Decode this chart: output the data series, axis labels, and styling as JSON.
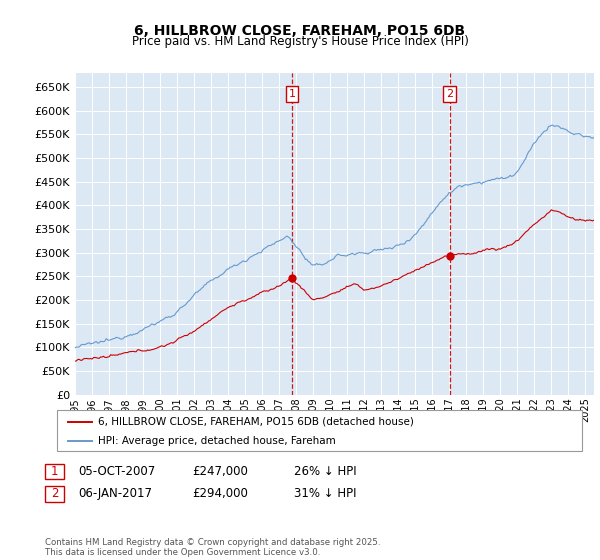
{
  "title": "6, HILLBROW CLOSE, FAREHAM, PO15 6DB",
  "subtitle": "Price paid vs. HM Land Registry's House Price Index (HPI)",
  "ylabel_ticks": [
    "£0",
    "£50K",
    "£100K",
    "£150K",
    "£200K",
    "£250K",
    "£300K",
    "£350K",
    "£400K",
    "£450K",
    "£500K",
    "£550K",
    "£600K",
    "£650K"
  ],
  "ytick_vals": [
    0,
    50000,
    100000,
    150000,
    200000,
    250000,
    300000,
    350000,
    400000,
    450000,
    500000,
    550000,
    600000,
    650000
  ],
  "ylim": [
    0,
    680000
  ],
  "xlim_start": 1995.0,
  "xlim_end": 2025.5,
  "sale1_x": 2007.76,
  "sale1_y": 247000,
  "sale2_x": 2017.02,
  "sale2_y": 294000,
  "legend_line1": "6, HILLBROW CLOSE, FAREHAM, PO15 6DB (detached house)",
  "legend_line2": "HPI: Average price, detached house, Fareham",
  "annot1_label": "1",
  "annot1_date": "05-OCT-2007",
  "annot1_price": "£247,000",
  "annot1_hpi": "26% ↓ HPI",
  "annot2_label": "2",
  "annot2_date": "06-JAN-2017",
  "annot2_price": "£294,000",
  "annot2_hpi": "31% ↓ HPI",
  "footer": "Contains HM Land Registry data © Crown copyright and database right 2025.\nThis data is licensed under the Open Government Licence v3.0.",
  "bg_color": "#dce9f5",
  "line_red": "#cc0000",
  "line_blue": "#6699cc",
  "vline_color": "#cc0000",
  "box_color": "#cc0000",
  "title_fontsize": 10,
  "subtitle_fontsize": 8.5
}
